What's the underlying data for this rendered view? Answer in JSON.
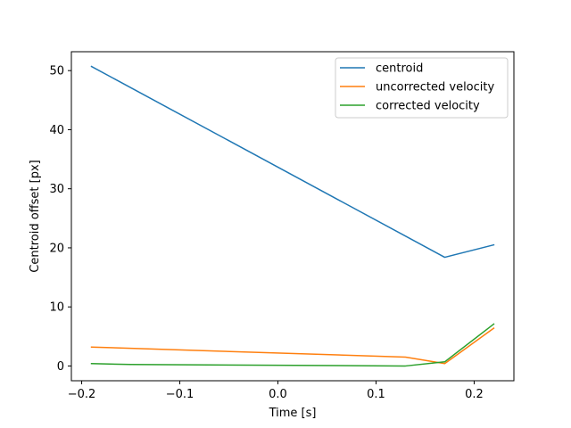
{
  "chart_data": {
    "type": "line",
    "title": "",
    "xlabel": "Time [s]",
    "ylabel": "Centroid offset [px]",
    "xlim": [
      -0.2105,
      0.2405
    ],
    "ylim": [
      -2.5,
      53.2
    ],
    "xticks": [
      -0.2,
      -0.1,
      0.0,
      0.1,
      0.2
    ],
    "xtick_labels": [
      "−0.2",
      "−0.1",
      "0.0",
      "0.1",
      "0.2"
    ],
    "yticks": [
      0,
      10,
      20,
      30,
      40,
      50
    ],
    "ytick_labels": [
      "0",
      "10",
      "20",
      "30",
      "40",
      "50"
    ],
    "grid": false,
    "legend_position": "upper right",
    "series": [
      {
        "name": "centroid",
        "color": "#1f77b4",
        "x": [
          -0.19,
          0.17,
          0.22
        ],
        "y": [
          50.7,
          18.4,
          20.5
        ]
      },
      {
        "name": "uncorrected velocity",
        "color": "#ff7f0e",
        "x": [
          -0.19,
          0.13,
          0.17,
          0.22
        ],
        "y": [
          3.2,
          1.5,
          0.4,
          6.4
        ]
      },
      {
        "name": "corrected velocity",
        "color": "#2ca02c",
        "x": [
          -0.19,
          -0.15,
          0.13,
          0.17,
          0.22
        ],
        "y": [
          0.4,
          0.25,
          0.0,
          0.7,
          7.1
        ]
      }
    ]
  }
}
